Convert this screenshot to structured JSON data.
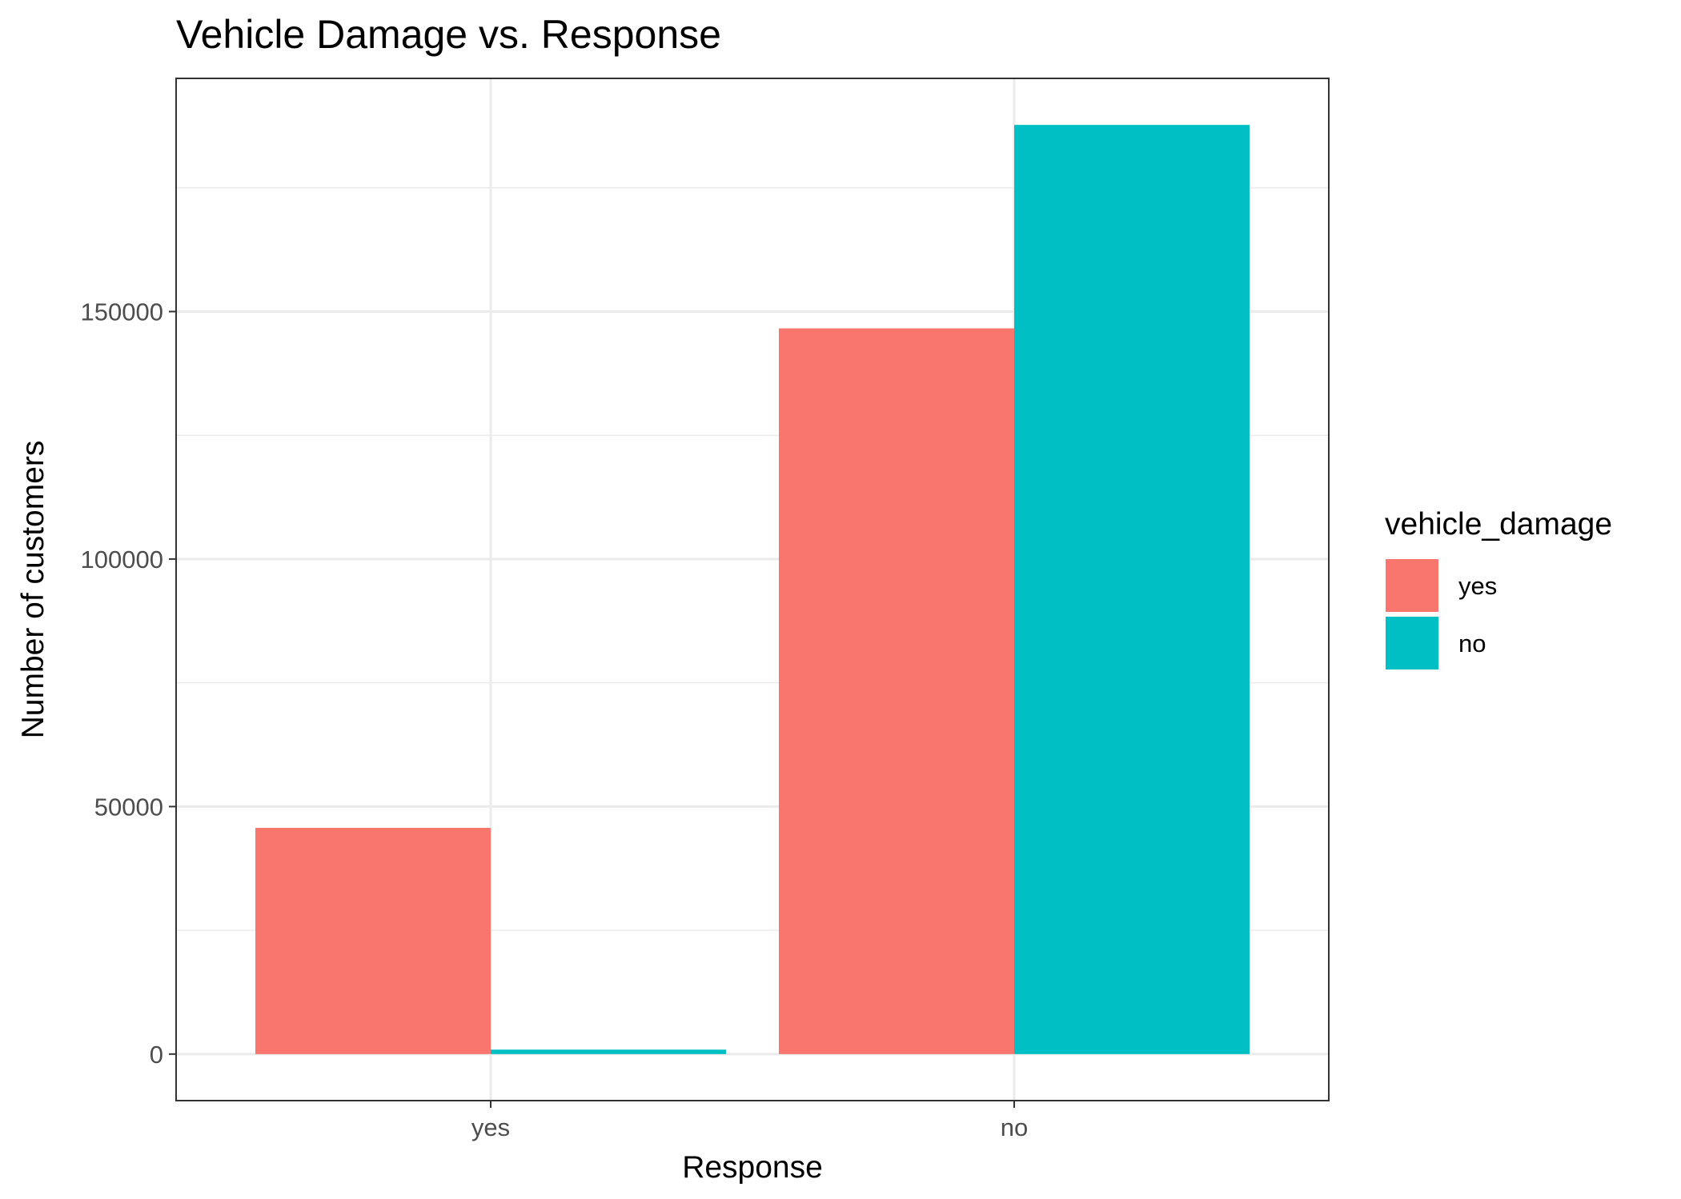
{
  "chart_data": {
    "type": "bar",
    "title": "Vehicle Damage vs. Response",
    "xlabel": "Response",
    "ylabel": "Number of customers",
    "categories": [
      "yes",
      "no"
    ],
    "series": [
      {
        "name": "yes",
        "color": "#F8766D",
        "values": [
          45700,
          146600
        ]
      },
      {
        "name": "no",
        "color": "#00BFC4",
        "values": [
          900,
          187700
        ]
      }
    ],
    "y_ticks": [
      0,
      50000,
      100000,
      150000
    ],
    "ylim": [
      -9400,
      197100
    ],
    "legend": {
      "title": "vehicle_damage",
      "position": "right"
    },
    "grid": true,
    "bar_layout": "dodged"
  }
}
